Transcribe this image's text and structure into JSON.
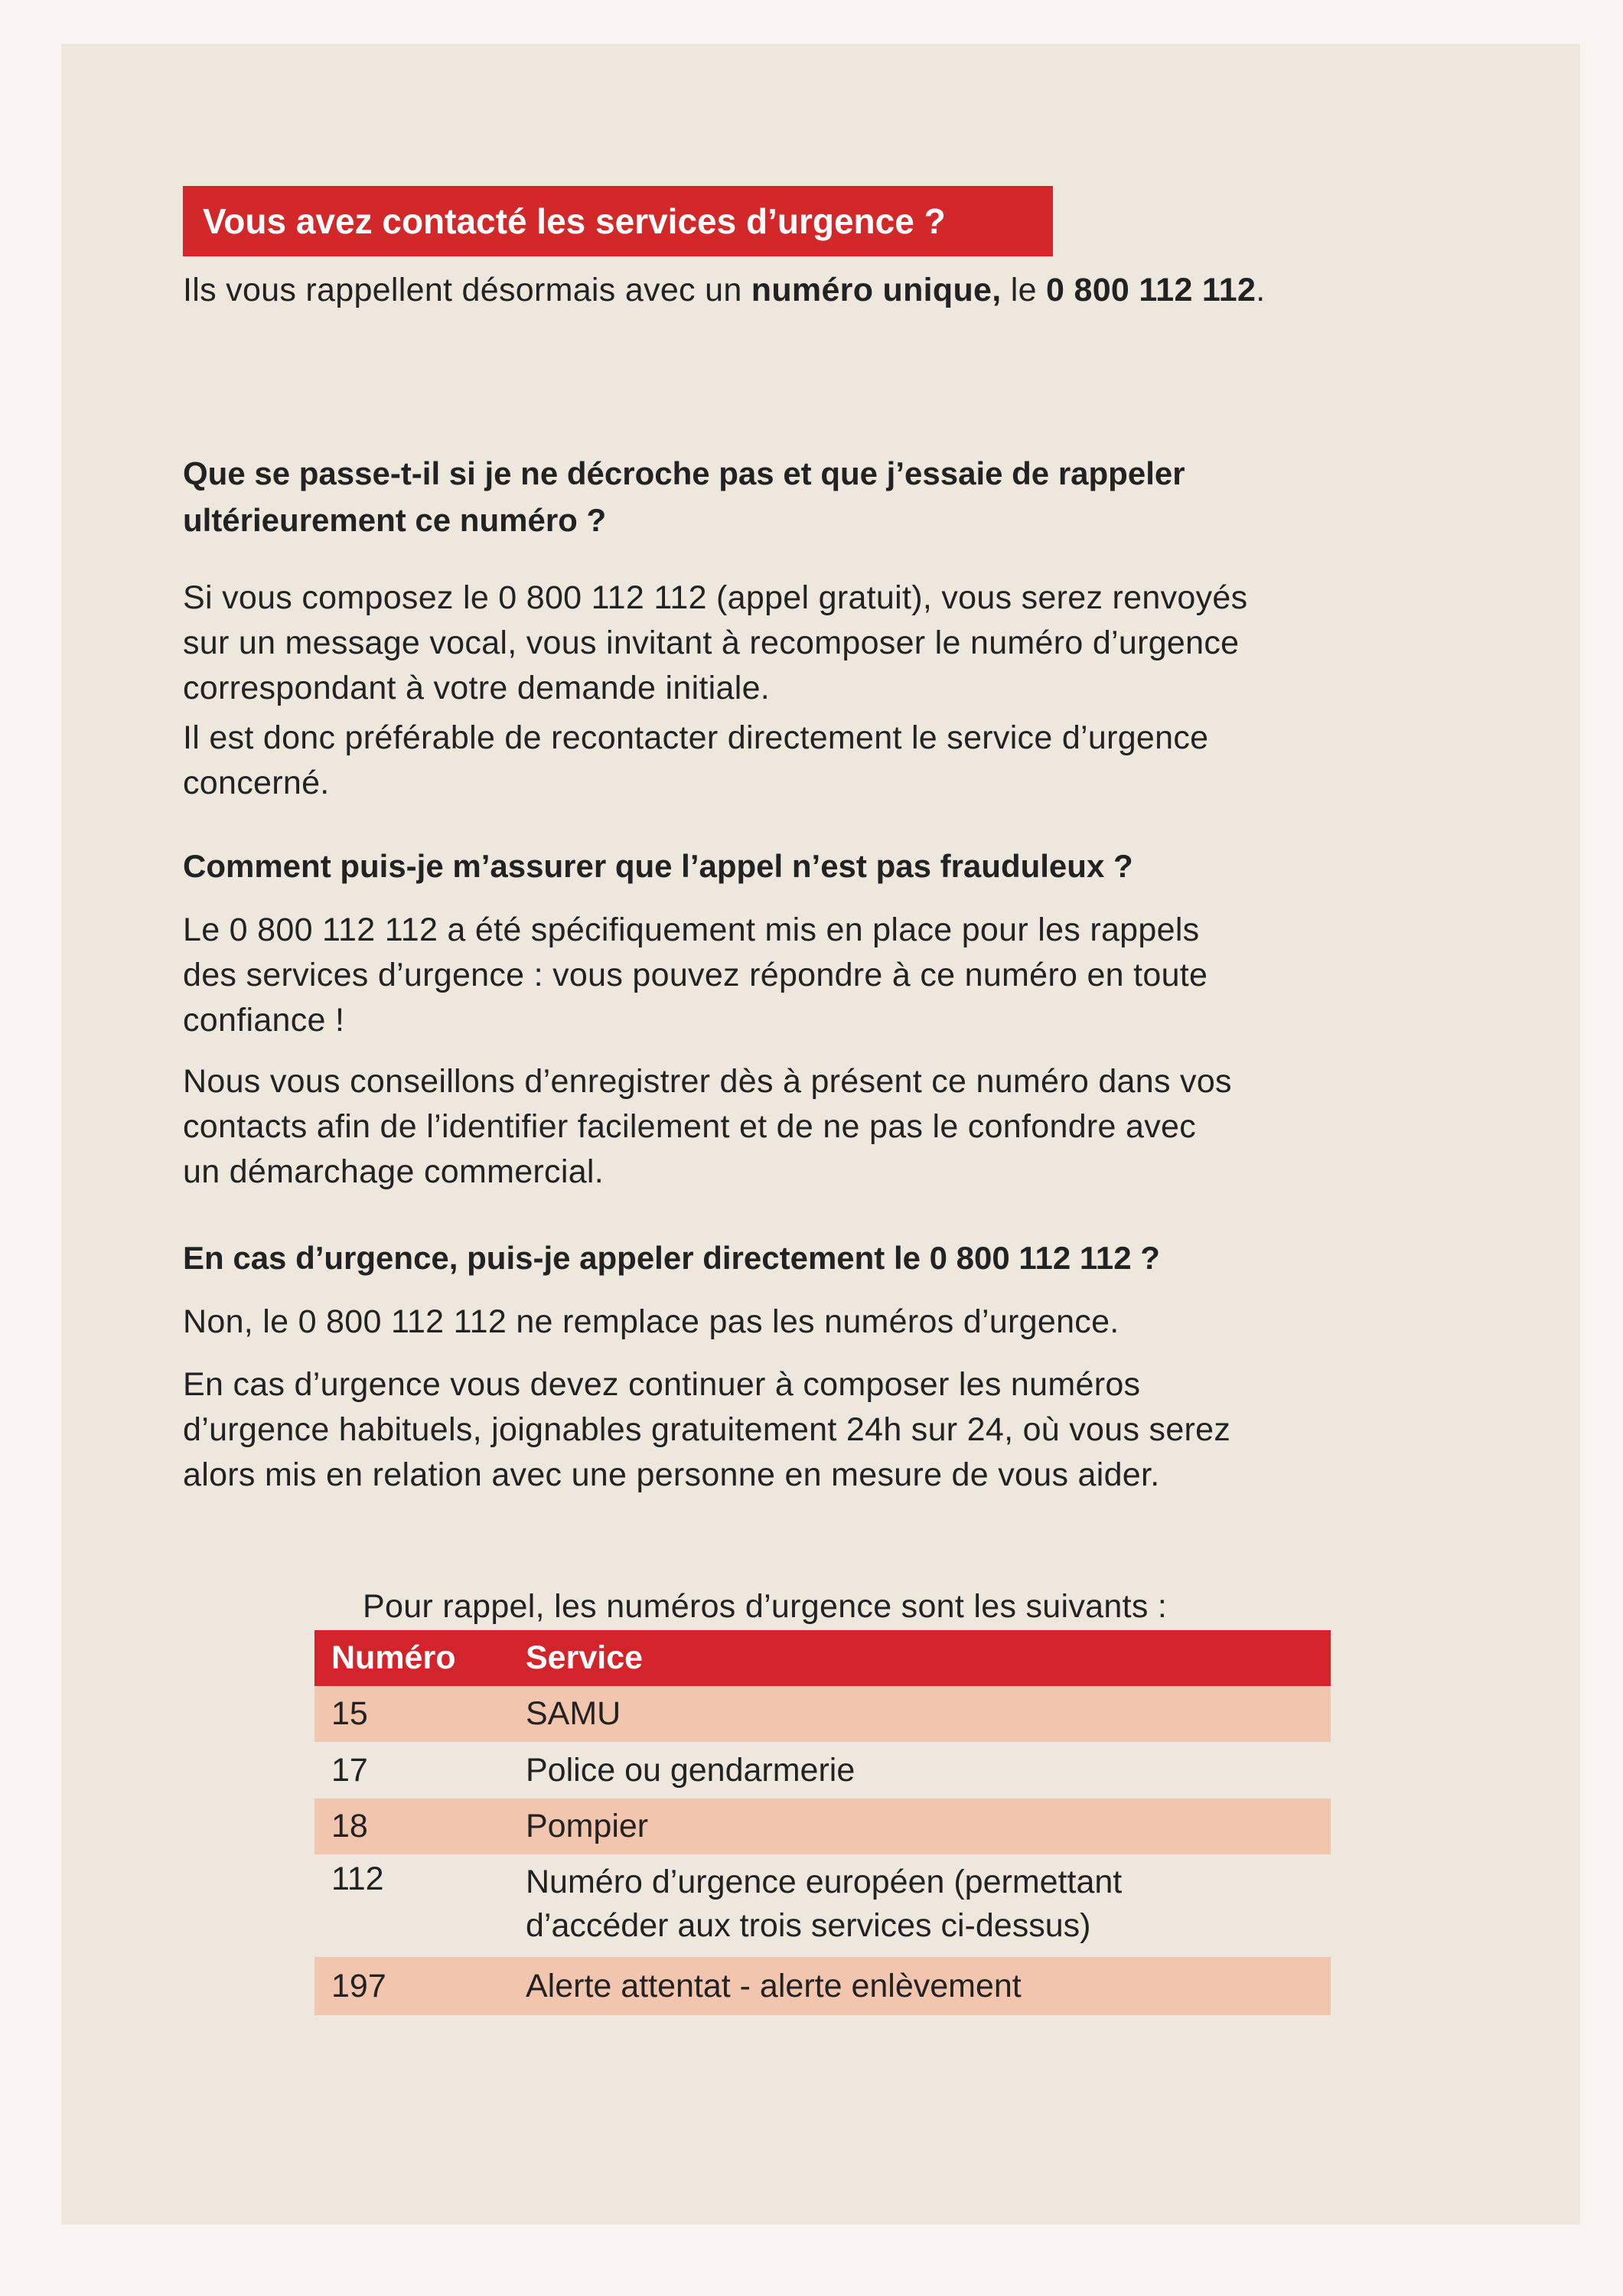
{
  "title": "Vous avez contacté les services d’urgence ?",
  "intro": {
    "pre": "Ils vous rappellent désormais avec un ",
    "bold1": "numéro unique,",
    "mid": " le ",
    "bold2": "0 800 112 112",
    "post": "."
  },
  "sections": [
    {
      "heading": [
        "Que se passe-t-il si je ne décroche pas et que j’essaie de rappeler",
        "ultérieurement ce numéro ?"
      ],
      "paragraphs": [
        [
          "Si vous composez le 0 800 112 112 (appel gratuit), vous serez renvoyés",
          "sur un message vocal, vous invitant à recomposer le numéro d’urgence",
          "correspondant à votre demande initiale."
        ],
        [
          "Il est donc préférable de recontacter directement le service d’urgence",
          "concerné."
        ]
      ]
    },
    {
      "heading": [
        "Comment puis-je m’assurer que l’appel n’est pas frauduleux ?"
      ],
      "paragraphs": [
        [
          "Le 0 800 112 112 a été spécifiquement mis en place pour les rappels",
          "des services d’urgence : vous pouvez répondre à ce numéro en toute",
          "confiance !"
        ],
        [
          "Nous vous conseillons d’enregistrer dès à présent ce numéro dans vos",
          "contacts afin de l’identifier facilement et de ne pas le confondre avec",
          "un démarchage commercial."
        ]
      ]
    },
    {
      "heading": [
        "En cas d’urgence, puis-je appeler directement le 0 800 112 112 ?"
      ],
      "paragraphs": [
        [
          "Non, le 0 800 112 112 ne remplace pas les numéros d’urgence."
        ],
        [
          "En cas d’urgence vous devez continuer à composer les numéros",
          "d’urgence habituels, joignables gratuitement 24h sur 24, où vous serez",
          "alors mis en relation avec une personne en mesure de vous aider."
        ]
      ]
    }
  ],
  "table": {
    "caption": "Pour rappel, les numéros d’urgence sont les suivants :",
    "headers": [
      "Numéro",
      "Service"
    ],
    "rows": [
      {
        "numero": "15",
        "service": [
          "SAMU"
        ]
      },
      {
        "numero": "17",
        "service": [
          "Police ou gendarmerie"
        ]
      },
      {
        "numero": "18",
        "service": [
          "Pompier"
        ]
      },
      {
        "numero": "112",
        "service": [
          "Numéro d’urgence européen (permettant",
          "d’accéder aux trois services ci-dessus)"
        ]
      },
      {
        "numero": "197",
        "service": [
          "Alerte attentat - alerte enlèvement"
        ]
      }
    ]
  },
  "colors": {
    "accent_red": "#d2282a",
    "row_pink": "#f2c5ae",
    "paper": "#ede7dd"
  }
}
